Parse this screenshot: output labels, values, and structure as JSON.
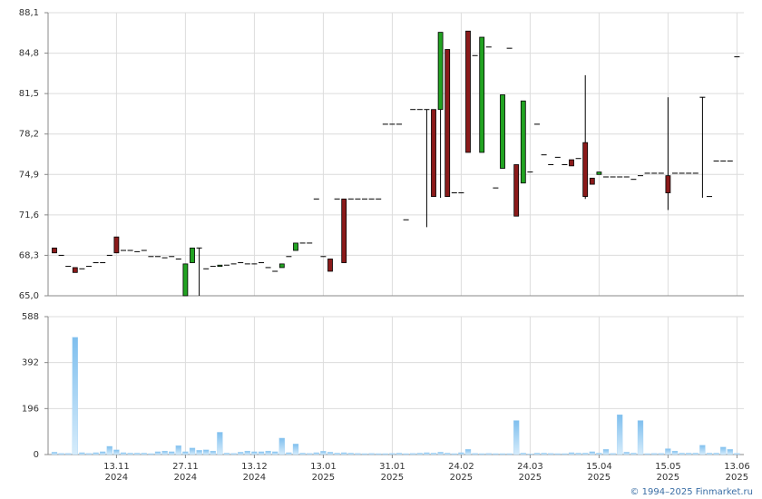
{
  "chart_data": {
    "type": "candlestick",
    "categories": [
      null,
      null,
      null,
      null,
      null,
      null,
      null,
      null,
      null,
      "13.11",
      null,
      null,
      null,
      null,
      null,
      null,
      null,
      null,
      null,
      "27.11",
      null,
      null,
      null,
      null,
      null,
      null,
      null,
      null,
      null,
      "13.12",
      null,
      null,
      null,
      null,
      null,
      null,
      null,
      null,
      null,
      "13.01",
      null,
      null,
      null,
      null,
      null,
      null,
      null,
      null,
      null,
      "31.01",
      null,
      null,
      null,
      null,
      null,
      null,
      null,
      null,
      null,
      "24.02",
      null,
      null,
      null,
      null,
      null,
      null,
      null,
      null,
      null,
      "24.03",
      null,
      null,
      null,
      null,
      null,
      null,
      null,
      null,
      null,
      "15.04",
      null,
      null,
      null,
      null,
      null,
      null,
      null,
      null,
      null,
      "15.05",
      null,
      null,
      null,
      null,
      null,
      null,
      null,
      null,
      null,
      "13.06"
    ],
    "category_years": [
      null,
      null,
      null,
      null,
      null,
      null,
      null,
      null,
      null,
      "2024",
      null,
      null,
      null,
      null,
      null,
      null,
      null,
      null,
      null,
      "2024",
      null,
      null,
      null,
      null,
      null,
      null,
      null,
      null,
      null,
      "2024",
      null,
      null,
      null,
      null,
      null,
      null,
      null,
      null,
      null,
      "2025",
      null,
      null,
      null,
      null,
      null,
      null,
      null,
      null,
      null,
      "2025",
      null,
      null,
      null,
      null,
      null,
      null,
      null,
      null,
      null,
      "2025",
      null,
      null,
      null,
      null,
      null,
      null,
      null,
      null,
      null,
      "2025",
      null,
      null,
      null,
      null,
      null,
      null,
      null,
      null,
      null,
      "2025",
      null,
      null,
      null,
      null,
      null,
      null,
      null,
      null,
      null,
      "2025",
      null,
      null,
      null,
      null,
      null,
      null,
      null,
      null,
      null,
      "2025"
    ],
    "open": [
      68.9,
      68.3,
      67.4,
      67.3,
      67.2,
      67.4,
      67.7,
      67.7,
      68.3,
      69.8,
      68.7,
      68.7,
      68.6,
      68.7,
      68.2,
      68.2,
      68.1,
      68.2,
      68.0,
      65.0,
      67.7,
      68.9,
      67.2,
      67.4,
      67.4,
      67.5,
      67.6,
      67.7,
      67.6,
      67.6,
      67.7,
      67.3,
      67.0,
      67.3,
      68.2,
      68.7,
      69.3,
      69.3,
      72.9,
      68.2,
      68.0,
      72.9,
      72.9,
      72.9,
      72.9,
      72.9,
      72.9,
      72.9,
      79.0,
      79.0,
      79.0,
      71.2,
      80.2,
      80.2,
      80.2,
      80.2,
      80.2,
      85.1,
      73.4,
      73.4,
      86.6,
      84.6,
      76.7,
      85.3,
      73.8,
      75.4,
      85.2,
      75.7,
      74.2,
      75.1,
      79.0,
      76.5,
      75.7,
      76.3,
      75.7,
      76.1,
      76.2,
      77.5,
      74.6,
      74.9,
      74.7,
      74.7,
      74.7,
      74.7,
      74.5,
      74.8,
      75.0,
      75.0,
      75.0,
      74.8,
      75.0,
      75.0,
      75.0,
      75.0,
      81.2,
      73.1,
      76.0,
      76.0,
      76.0,
      84.5
    ],
    "high": [
      68.9,
      68.3,
      67.4,
      67.3,
      67.2,
      67.4,
      67.7,
      67.7,
      68.3,
      69.8,
      68.7,
      68.7,
      68.6,
      68.7,
      68.2,
      68.2,
      68.1,
      68.2,
      68.0,
      67.6,
      68.9,
      68.9,
      67.2,
      67.4,
      67.5,
      67.5,
      67.6,
      67.7,
      67.6,
      67.6,
      67.7,
      67.3,
      67.0,
      67.6,
      68.2,
      69.3,
      69.3,
      69.3,
      72.9,
      68.2,
      68.0,
      72.9,
      72.9,
      72.9,
      72.9,
      72.9,
      72.9,
      72.9,
      79.0,
      79.0,
      79.0,
      71.2,
      80.2,
      80.2,
      80.2,
      80.2,
      86.5,
      85.1,
      73.4,
      73.4,
      86.6,
      84.6,
      86.1,
      85.3,
      73.8,
      81.4,
      85.2,
      75.7,
      80.9,
      75.1,
      79.0,
      76.5,
      75.7,
      76.3,
      75.7,
      76.1,
      76.2,
      83.0,
      74.6,
      75.1,
      74.7,
      74.7,
      74.7,
      74.7,
      74.5,
      74.8,
      75.0,
      75.0,
      75.0,
      81.2,
      75.0,
      75.0,
      75.0,
      75.0,
      81.2,
      73.1,
      76.0,
      76.0,
      76.0,
      84.5
    ],
    "low": [
      68.5,
      68.3,
      67.4,
      66.9,
      67.2,
      67.4,
      67.7,
      67.7,
      68.3,
      68.5,
      68.7,
      68.7,
      68.6,
      68.7,
      68.2,
      68.2,
      68.1,
      68.2,
      68.0,
      65.0,
      67.7,
      65.0,
      67.2,
      67.4,
      67.4,
      67.5,
      67.6,
      67.7,
      67.6,
      67.6,
      67.7,
      67.3,
      67.0,
      67.3,
      68.2,
      68.7,
      69.3,
      69.3,
      72.9,
      68.2,
      67.0,
      72.9,
      67.7,
      72.9,
      72.9,
      72.9,
      72.9,
      72.9,
      79.0,
      79.0,
      79.0,
      71.2,
      80.2,
      80.2,
      70.6,
      73.1,
      73.0,
      73.1,
      73.4,
      73.4,
      76.7,
      84.6,
      76.7,
      85.3,
      73.8,
      75.4,
      85.2,
      71.5,
      74.2,
      75.1,
      79.0,
      76.5,
      75.7,
      76.3,
      75.7,
      75.6,
      76.2,
      72.9,
      74.1,
      74.9,
      74.7,
      74.7,
      74.7,
      74.7,
      74.5,
      74.8,
      75.0,
      75.0,
      75.0,
      72.0,
      75.0,
      75.0,
      75.0,
      75.0,
      73.0,
      73.1,
      76.0,
      76.0,
      76.0,
      84.5
    ],
    "close": [
      68.5,
      68.3,
      67.4,
      66.9,
      67.2,
      67.4,
      67.7,
      67.7,
      68.3,
      68.5,
      68.7,
      68.7,
      68.6,
      68.7,
      68.2,
      68.2,
      68.1,
      68.2,
      68.0,
      67.6,
      68.9,
      68.9,
      67.2,
      67.4,
      67.5,
      67.5,
      67.6,
      67.7,
      67.6,
      67.6,
      67.7,
      67.3,
      67.0,
      67.6,
      68.2,
      69.3,
      69.3,
      69.3,
      72.9,
      68.2,
      67.0,
      72.9,
      67.7,
      72.9,
      72.9,
      72.9,
      72.9,
      72.9,
      79.0,
      79.0,
      79.0,
      71.2,
      80.2,
      80.2,
      80.2,
      73.1,
      86.5,
      73.1,
      73.4,
      73.4,
      76.7,
      84.6,
      86.1,
      85.3,
      73.8,
      81.4,
      85.2,
      71.5,
      80.9,
      75.1,
      79.0,
      76.5,
      75.7,
      76.3,
      75.7,
      75.6,
      76.2,
      73.1,
      74.1,
      75.1,
      74.7,
      74.7,
      74.7,
      74.7,
      74.5,
      74.8,
      75.0,
      75.0,
      75.0,
      73.4,
      75.0,
      75.0,
      75.0,
      75.0,
      81.2,
      73.1,
      76.0,
      76.0,
      76.0,
      84.5
    ],
    "up_color": "#22a322",
    "down_color": "#8b1a1a",
    "ylim": [
      65.0,
      88.1
    ],
    "yticks": [
      {
        "value": 65.0,
        "label": "65,0"
      },
      {
        "value": 68.3,
        "label": "68,3"
      },
      {
        "value": 71.6,
        "label": "71,6"
      },
      {
        "value": 74.9,
        "label": "74,9"
      },
      {
        "value": 78.2,
        "label": "78,2"
      },
      {
        "value": 81.5,
        "label": "81,5"
      },
      {
        "value": 84.8,
        "label": "84,8"
      },
      {
        "value": 88.1,
        "label": "88,1"
      }
    ],
    "grid": true,
    "volume": {
      "color": "#9fd0f3",
      "values": [
        10,
        5,
        5,
        500,
        8,
        5,
        8,
        12,
        35,
        20,
        8,
        6,
        6,
        6,
        4,
        12,
        15,
        12,
        38,
        12,
        28,
        18,
        20,
        15,
        95,
        6,
        5,
        10,
        15,
        12,
        12,
        15,
        12,
        70,
        8,
        45,
        6,
        5,
        8,
        14,
        10,
        6,
        8,
        6,
        5,
        4,
        5,
        4,
        4,
        5,
        6,
        4,
        5,
        6,
        8,
        6,
        10,
        6,
        4,
        8,
        22,
        5,
        4,
        5,
        4,
        4,
        4,
        145,
        6,
        3,
        6,
        6,
        5,
        4,
        4,
        8,
        6,
        6,
        12,
        6,
        22,
        5,
        170,
        10,
        6,
        145,
        4,
        5,
        5,
        25,
        15,
        6,
        6,
        6,
        40,
        6,
        6,
        32,
        22,
        5
      ],
      "ylim": [
        0,
        588
      ],
      "yticks": [
        0,
        196,
        392,
        588
      ]
    },
    "footer": "© 1994–2025 Finmarket.ru"
  }
}
